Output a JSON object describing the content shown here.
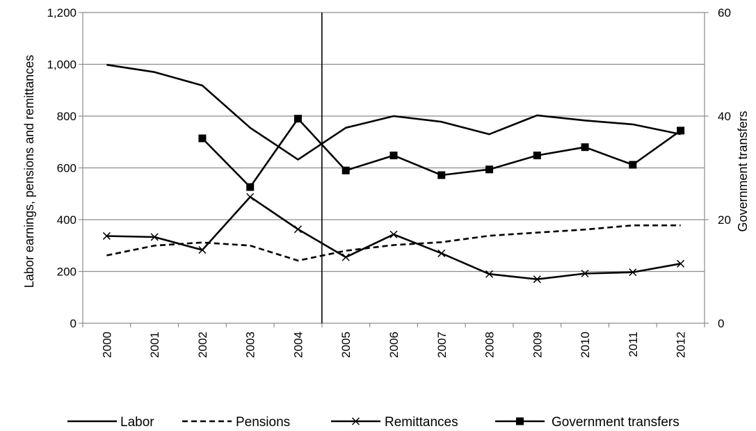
{
  "chart_data": {
    "type": "line",
    "x": [
      "2000",
      "2001",
      "2002",
      "2003",
      "2004",
      "2005",
      "2006",
      "2007",
      "2008",
      "2009",
      "2010",
      "2011",
      "2012"
    ],
    "y_left": {
      "label": "Labor earnings, pensions and remittances",
      "range": [
        0,
        1200
      ],
      "ticks": [
        0,
        200,
        400,
        600,
        800,
        1000,
        1200
      ],
      "tick_labels": [
        "0",
        "200",
        "400",
        "600",
        "800",
        "1,000",
        "1,200"
      ]
    },
    "y_right": {
      "label": "Government transfers",
      "range": [
        0,
        60
      ],
      "ticks": [
        0,
        20,
        40,
        60
      ],
      "tick_labels": [
        "0",
        "20",
        "40",
        "60"
      ]
    },
    "grid": true,
    "vertical_marker_between": [
      "2004",
      "2005"
    ],
    "legend_position": "bottom",
    "series": [
      {
        "name": "Labor",
        "axis": "left",
        "style": "solid",
        "marker": "none",
        "values": [
          998,
          970,
          918,
          755,
          632,
          755,
          800,
          778,
          730,
          803,
          783,
          768,
          730
        ]
      },
      {
        "name": "Pensions",
        "axis": "left",
        "style": "dashed",
        "marker": "none",
        "values": [
          262,
          300,
          312,
          300,
          242,
          280,
          302,
          313,
          338,
          350,
          362,
          378,
          378
        ]
      },
      {
        "name": "Remittances",
        "axis": "left",
        "style": "solid",
        "marker": "x",
        "values": [
          337,
          333,
          283,
          488,
          363,
          255,
          343,
          270,
          190,
          170,
          192,
          197,
          230
        ]
      },
      {
        "name": "Government transfers",
        "axis": "right",
        "style": "solid",
        "marker": "square",
        "values": [
          null,
          null,
          35.7,
          26.3,
          39.5,
          29.5,
          32.4,
          28.6,
          29.7,
          32.4,
          34.0,
          30.6,
          37.2
        ]
      }
    ]
  }
}
